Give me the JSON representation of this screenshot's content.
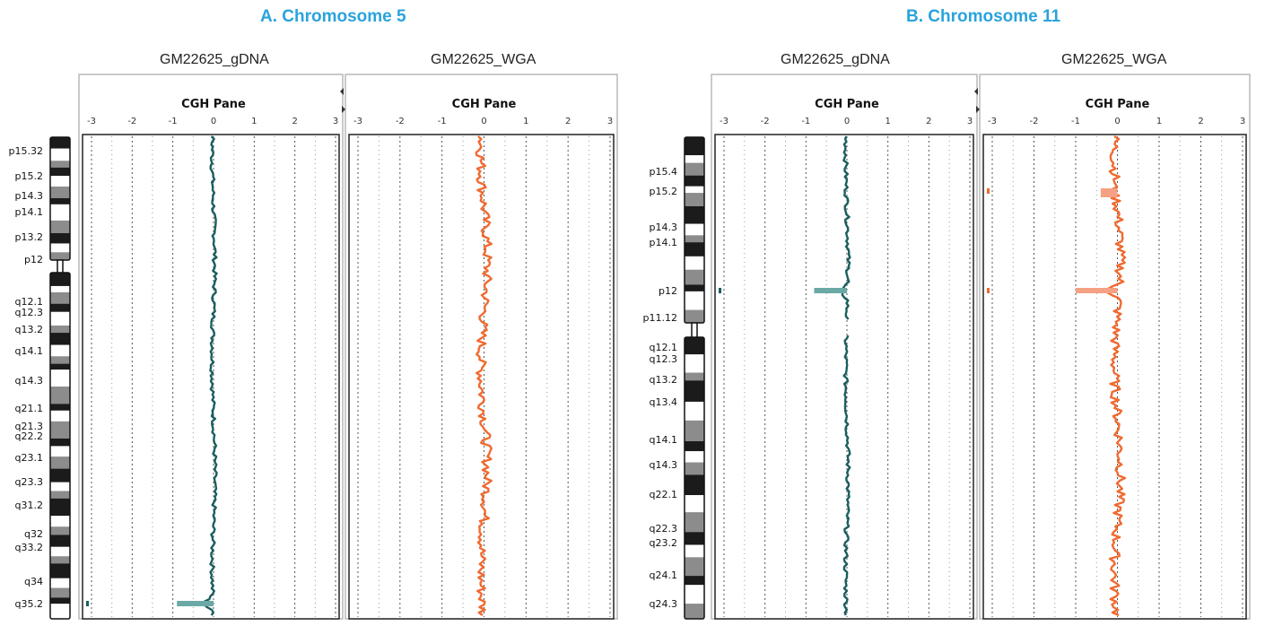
{
  "sections": [
    {
      "title": "A. Chromosome 5",
      "samples": [
        "GM22625_gDNA",
        "GM22625_WGA"
      ]
    },
    {
      "title": "B. Chromosome 11",
      "samples": [
        "GM22625_gDNA",
        "GM22625_WGA"
      ]
    }
  ],
  "colors": {
    "gdna": "#1a5e5e",
    "wga": "#f06a30",
    "gdna_seg": "#6aa9a5",
    "wga_seg": "#f5a184",
    "title": "#2aa3dc"
  },
  "chart_data": [
    {
      "type": "line",
      "chromosome": "5",
      "pane_title": "CGH Pane",
      "x_ticks": [
        -3,
        -2,
        -1,
        0,
        1,
        2,
        3
      ],
      "xlim": [
        -3,
        3
      ],
      "grid": true,
      "bands": [
        "p15.32",
        "p15.2",
        "p14.3",
        "p14.1",
        "p13.2",
        "p12",
        "q12.1",
        "q12.3",
        "q13.2",
        "q14.1",
        "q14.3",
        "q21.1",
        "q21.3",
        "q22.2",
        "q23.1",
        "q23.3",
        "q31.2",
        "q32",
        "q33.2",
        "q34",
        "q35.2"
      ],
      "series": [
        {
          "name": "GM22625_gDNA",
          "profile": "mostly ~0 log ratio with small noise",
          "aberrations": [
            {
              "band": "q35.2",
              "value": -0.9
            }
          ]
        },
        {
          "name": "GM22625_WGA",
          "profile": "~0 log ratio with larger noise",
          "aberrations": []
        }
      ]
    },
    {
      "type": "line",
      "chromosome": "11",
      "pane_title": "CGH Pane",
      "x_ticks": [
        -3,
        -2,
        -1,
        0,
        1,
        2,
        3
      ],
      "xlim": [
        -3,
        3
      ],
      "grid": true,
      "bands": [
        "p15.4",
        "p15.2",
        "p14.3",
        "p14.1",
        "p12",
        "p11.12",
        "q12.1",
        "q12.3",
        "q13.2",
        "q13.4",
        "q14.1",
        "q14.3",
        "q22.1",
        "q22.3",
        "q23.2",
        "q24.1",
        "q24.3"
      ],
      "series": [
        {
          "name": "GM22625_gDNA",
          "profile": "~0 log ratio",
          "aberrations": [
            {
              "band": "p12",
              "value": -0.8
            }
          ]
        },
        {
          "name": "GM22625_WGA",
          "profile": "~0 log ratio, noisier",
          "aberrations": [
            {
              "band": "p15.2",
              "value": -0.4
            },
            {
              "band": "p12",
              "value": -1.0
            }
          ]
        }
      ]
    }
  ]
}
